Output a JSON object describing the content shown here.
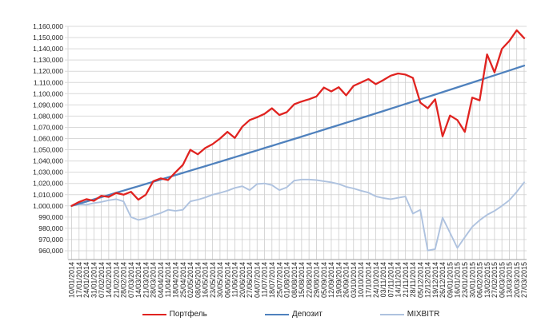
{
  "chart_data": {
    "type": "line",
    "title": "",
    "xlabel": "",
    "ylabel": "",
    "ylim": [
      960000,
      1160000
    ],
    "y_step": 10000,
    "grid": {
      "horizontal_major": true,
      "drop_lines_from_series": "Портфель"
    },
    "legend_position": "bottom",
    "y_tick_labels": [
      "1,160,000",
      "1,150,000",
      "1,140,000",
      "1,130,000",
      "1,120,000",
      "1,110,000",
      "1,100,000",
      "1,090,000",
      "1,080,000",
      "1,070,000",
      "1,060,000",
      "1,050,000",
      "1,040,000",
      "1,030,000",
      "1,020,000",
      "1,010,000",
      "1,000,000",
      "990,000",
      "980,000",
      "970,000",
      "960,000"
    ],
    "x_labels": [
      "10/01/2014",
      "17/01/2014",
      "24/01/2014",
      "31/01/2014",
      "07/02/2014",
      "14/02/2014",
      "21/02/2014",
      "28/02/2014",
      "07/03/2014",
      "14/03/2014",
      "21/03/2014",
      "28/03/2014",
      "04/04/2014",
      "11/04/2014",
      "18/04/2014",
      "25/04/2014",
      "02/05/2014",
      "08/05/2014",
      "16/05/2014",
      "23/05/2014",
      "30/05/2014",
      "06/06/2014",
      "11/06/2014",
      "20/06/2014",
      "27/06/2014",
      "04/07/2014",
      "11/07/2014",
      "18/07/2014",
      "25/07/2014",
      "01/08/2014",
      "08/08/2014",
      "15/08/2014",
      "22/08/2014",
      "29/08/2014",
      "05/09/2014",
      "12/09/2014",
      "19/09/2014",
      "26/09/2014",
      "03/10/2014",
      "10/10/2014",
      "17/10/2014",
      "24/10/2014",
      "03/11/2014",
      "07/11/2014",
      "14/11/2014",
      "21/11/2014",
      "28/11/2014",
      "05/12/2014",
      "12/12/2014",
      "19/12/2014",
      "26/12/2014",
      "09/01/2015",
      "16/01/2015",
      "23/01/2015",
      "30/01/2015",
      "06/02/2015",
      "13/02/2015",
      "27/02/2015",
      "06/03/2015",
      "13/03/2015",
      "20/03/2015",
      "27/03/2015"
    ],
    "series": [
      {
        "key": "portfolio",
        "name": "Портфель",
        "color": "#E02320",
        "values": [
          1000000,
          1003500,
          1006000,
          1004500,
          1009000,
          1008000,
          1011500,
          1010000,
          1012500,
          1005500,
          1010000,
          1022000,
          1024500,
          1023000,
          1030000,
          1036500,
          1050000,
          1046000,
          1051500,
          1055000,
          1060000,
          1066000,
          1060500,
          1070500,
          1076500,
          1079000,
          1082000,
          1087000,
          1081000,
          1083500,
          1090500,
          1093000,
          1095000,
          1097500,
          1105500,
          1102000,
          1105800,
          1098500,
          1107000,
          1110000,
          1113000,
          1108500,
          1112000,
          1116000,
          1118000,
          1117000,
          1114000,
          1092000,
          1087000,
          1095000,
          1062000,
          1080500,
          1076500,
          1066000,
          1096500,
          1094000,
          1135000,
          1119000,
          1140000,
          1147000,
          1156500,
          1149500
        ]
      },
      {
        "key": "deposit",
        "name": "Депозит",
        "color": "#4F81BD",
        "values": [
          1000000,
          1001933,
          1003870,
          1005811,
          1007755,
          1009703,
          1011654,
          1013610,
          1015569,
          1017532,
          1019499,
          1021470,
          1023445,
          1025423,
          1027405,
          1029391,
          1031382,
          1033376,
          1035374,
          1037377,
          1039383,
          1041392,
          1043405,
          1045422,
          1047443,
          1049468,
          1051497,
          1053530,
          1055567,
          1057607,
          1059652,
          1061700,
          1063752,
          1065808,
          1067868,
          1069932,
          1072000,
          1074072,
          1076148,
          1078228,
          1080312,
          1082400,
          1084492,
          1086588,
          1088688,
          1090792,
          1092900,
          1095012,
          1097128,
          1099248,
          1101372,
          1103500,
          1105632,
          1107768,
          1109908,
          1112052,
          1114200,
          1116353,
          1118510,
          1120671,
          1122836,
          1125005
        ]
      },
      {
        "key": "mixbitr",
        "name": "MIXBITR",
        "color": "#AEC2DF",
        "values": [
          1000000,
          1001500,
          1001000,
          1002500,
          1003500,
          1005000,
          1006000,
          1004000,
          990000,
          987500,
          989000,
          991500,
          993500,
          996500,
          995500,
          996500,
          1004000,
          1005500,
          1007500,
          1010000,
          1011500,
          1013500,
          1016000,
          1017500,
          1014000,
          1019500,
          1020000,
          1018500,
          1014000,
          1016500,
          1022500,
          1023500,
          1023500,
          1023000,
          1022000,
          1021000,
          1019500,
          1017000,
          1015500,
          1013500,
          1011800,
          1008500,
          1007000,
          1006000,
          1007200,
          1008300,
          993100,
          996500,
          960200,
          961500,
          989500,
          976000,
          962500,
          972000,
          981300,
          987200,
          992000,
          995500,
          1000000,
          1005000,
          1012500,
          1021000
        ]
      }
    ],
    "style_colors": {
      "gridline": "#D9D9D9",
      "drop_line": "#CDCDCD",
      "axis_line": "#9C9C9C",
      "text": "#1F1F1F"
    }
  }
}
